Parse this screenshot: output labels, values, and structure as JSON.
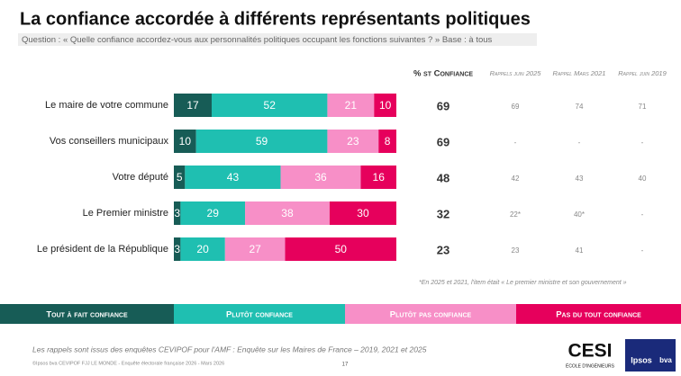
{
  "chart_data": {
    "type": "bar",
    "orientation": "horizontal",
    "stacked": true,
    "title": "La confiance accordée à différents représentants politiques",
    "subtitle": "Question : « Quelle confiance accordez-vous aux personnalités politiques occupant les fonctions suivantes ? » Base : à tous",
    "categories": [
      "Le maire de votre commune",
      "Vos conseillers municipaux",
      "Votre député",
      "Le Premier ministre",
      "Le président de la République"
    ],
    "xlim": [
      0,
      100
    ],
    "series": [
      {
        "name": "Tout à fait confiance",
        "color": "#175c56",
        "values": [
          17,
          10,
          5,
          3,
          3
        ]
      },
      {
        "name": "Plutôt confiance",
        "color": "#1fbfb1",
        "values": [
          52,
          59,
          43,
          29,
          20
        ]
      },
      {
        "name": "Plutôt pas confiance",
        "color": "#f78fc7",
        "values": [
          21,
          23,
          36,
          38,
          27
        ]
      },
      {
        "name": "Pas du tout confiance",
        "color": "#e6005c",
        "values": [
          10,
          8,
          16,
          30,
          50
        ]
      }
    ]
  },
  "table": {
    "headers": [
      "% st Confiance",
      "Rappels juin 2025",
      "Rappel Mars 2021",
      "Rappel juin 2019"
    ],
    "rows": [
      [
        69,
        "69",
        "74",
        "71"
      ],
      [
        69,
        "-",
        "-",
        "-"
      ],
      [
        48,
        "42",
        "43",
        "40"
      ],
      [
        32,
        "22*",
        "40*",
        "-"
      ],
      [
        23,
        "23",
        "41",
        "-"
      ]
    ],
    "note": "*En 2025 et 2021, l'item était « Le premier ministre et son gouvernement »"
  },
  "footer": {
    "source": "Les rappels sont issus des enquêtes CEVIPOF pour l'AMF : Enquête sur les Maires de France – 2019, 2021 et 2025",
    "copyright": "©Ipsos bva CEVIPOF FJJ LE MONDE - Enquête électorale française 2026 - Mars 2026",
    "page": "17",
    "logo1": "CESI",
    "logo1_sub": "ÉCOLE D'INGÉNIEURS",
    "logo2": "Ipsos",
    "logo2_sub": "bva"
  }
}
